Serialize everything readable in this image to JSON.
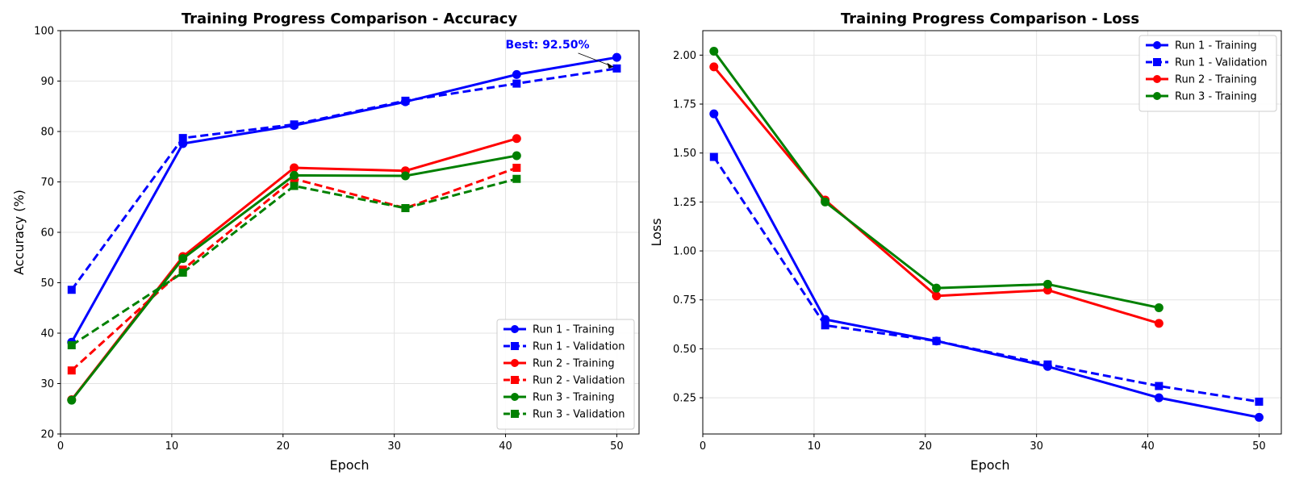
{
  "colors": {
    "Run 1": "#0000ff",
    "Run 2": "#ff0000",
    "Run 3": "#008000"
  },
  "chart_data": [
    {
      "type": "line",
      "title": "Training Progress Comparison - Accuracy",
      "xlabel": "Epoch",
      "ylabel": "Accuracy (%)",
      "xlim": [
        0,
        52
      ],
      "ylim": [
        20,
        100
      ],
      "xticks": [
        0,
        10,
        20,
        30,
        40,
        50
      ],
      "yticks": [
        20,
        30,
        40,
        50,
        60,
        70,
        80,
        90,
        100
      ],
      "ytick_format": "int",
      "grid": true,
      "legend_position": "bottom-right",
      "annotation": {
        "text": "Best: 92.50%",
        "color": "#0000ff",
        "point": {
          "x": 50,
          "y": 92.5
        },
        "label_at": {
          "x": 40,
          "y": 96.5
        }
      },
      "series": [
        {
          "name": "Run 1 - Training",
          "run": "Run 1",
          "style": "solid",
          "marker": "circle",
          "x": [
            1,
            11,
            21,
            31,
            41,
            50
          ],
          "y": [
            38.2,
            77.6,
            81.2,
            85.9,
            91.3,
            94.7
          ]
        },
        {
          "name": "Run 1 - Validation",
          "run": "Run 1",
          "style": "dashed",
          "marker": "square",
          "x": [
            1,
            11,
            21,
            31,
            41,
            50
          ],
          "y": [
            48.6,
            78.7,
            81.4,
            86.1,
            89.5,
            92.5
          ]
        },
        {
          "name": "Run 2 - Training",
          "run": "Run 2",
          "style": "solid",
          "marker": "circle",
          "x": [
            1,
            11,
            21,
            31,
            41
          ],
          "y": [
            26.8,
            55.2,
            72.8,
            72.2,
            78.6
          ]
        },
        {
          "name": "Run 2 - Validation",
          "run": "Run 2",
          "style": "dashed",
          "marker": "square",
          "x": [
            1,
            11,
            21,
            31,
            41
          ],
          "y": [
            32.6,
            52.6,
            70.6,
            64.8,
            72.8
          ]
        },
        {
          "name": "Run 3 - Training",
          "run": "Run 3",
          "style": "solid",
          "marker": "circle",
          "x": [
            1,
            11,
            21,
            31,
            41
          ],
          "y": [
            26.7,
            54.8,
            71.3,
            71.2,
            75.2
          ]
        },
        {
          "name": "Run 3 - Validation",
          "run": "Run 3",
          "style": "dashed",
          "marker": "square",
          "x": [
            1,
            11,
            21,
            31,
            41
          ],
          "y": [
            37.6,
            52.0,
            69.2,
            64.8,
            70.6
          ]
        }
      ]
    },
    {
      "type": "line",
      "title": "Training Progress Comparison - Loss",
      "xlabel": "Epoch",
      "ylabel": "Loss",
      "xlim": [
        0,
        52
      ],
      "ylim": [
        0.065,
        2.125
      ],
      "xticks": [
        0,
        10,
        20,
        30,
        40,
        50
      ],
      "yticks": [
        0.25,
        0.5,
        0.75,
        1.0,
        1.25,
        1.5,
        1.75,
        2.0
      ],
      "ytick_format": "2dp",
      "grid": true,
      "legend_position": "top-right",
      "series": [
        {
          "name": "Run 1 - Training",
          "run": "Run 1",
          "style": "solid",
          "marker": "circle",
          "x": [
            1,
            11,
            21,
            31,
            41,
            50
          ],
          "y": [
            1.7,
            0.65,
            0.54,
            0.41,
            0.25,
            0.15
          ]
        },
        {
          "name": "Run 1 - Validation",
          "run": "Run 1",
          "style": "dashed",
          "marker": "square",
          "x": [
            1,
            11,
            21,
            31,
            41,
            50
          ],
          "y": [
            1.48,
            0.62,
            0.54,
            0.42,
            0.31,
            0.23
          ]
        },
        {
          "name": "Run 2 - Training",
          "run": "Run 2",
          "style": "solid",
          "marker": "circle",
          "x": [
            1,
            11,
            21,
            31,
            41
          ],
          "y": [
            1.94,
            1.26,
            0.77,
            0.8,
            0.63
          ]
        },
        {
          "name": "Run 3 - Training",
          "run": "Run 3",
          "style": "solid",
          "marker": "circle",
          "x": [
            1,
            11,
            21,
            31,
            41
          ],
          "y": [
            2.02,
            1.25,
            0.81,
            0.83,
            0.71
          ]
        }
      ]
    }
  ]
}
